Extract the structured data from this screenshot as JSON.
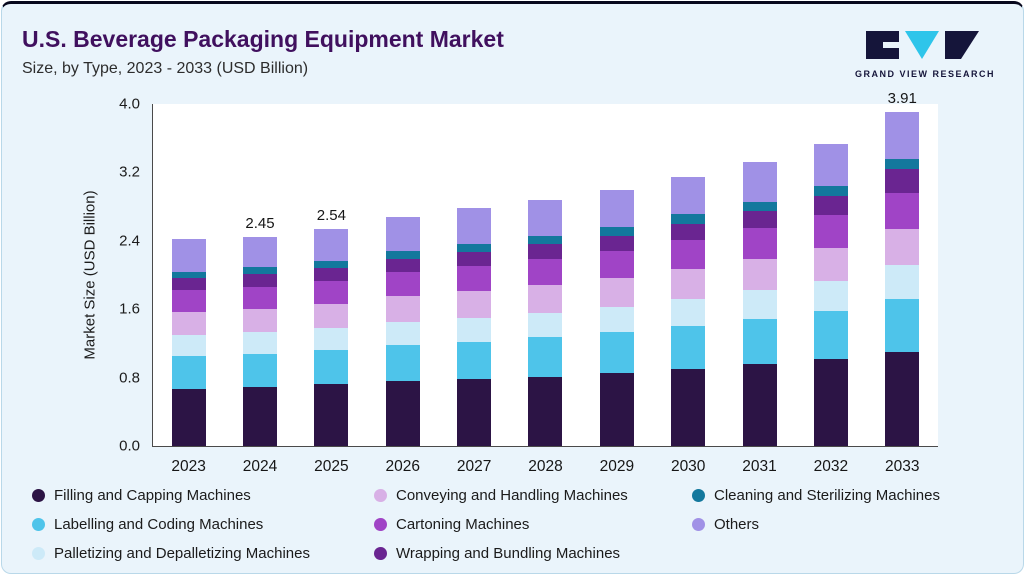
{
  "header": {
    "title": "U.S. Beverage Packaging Equipment Market",
    "subtitle": "Size, by Type, 2023 - 2033 (USD Billion)",
    "logo_text": "GRAND VIEW RESEARCH"
  },
  "colors": {
    "title_text": "#40105e",
    "card_background": "#eaf4fb",
    "logo_navy": "#15153a",
    "logo_cyan": "#2ec5ea"
  },
  "chart_data": {
    "type": "bar",
    "stacked": true,
    "title": "U.S. Beverage Packaging Equipment Market",
    "subtitle": "Size, by Type, 2023 - 2033 (USD Billion)",
    "xlabel": "",
    "ylabel": "Market Size (USD Billion)",
    "ylim": [
      0,
      4.0
    ],
    "yticks": [
      0.0,
      0.8,
      1.6,
      2.4,
      3.2,
      4.0
    ],
    "grid": false,
    "legend_position": "bottom",
    "categories": [
      "2023",
      "2024",
      "2025",
      "2026",
      "2027",
      "2028",
      "2029",
      "2030",
      "2031",
      "2032",
      "2033"
    ],
    "bar_total_labels": [
      "",
      "2.45",
      "2.54",
      "",
      "",
      "",
      "",
      "",
      "",
      "",
      "3.91"
    ],
    "series": [
      {
        "name": "Filling and Capping Machines",
        "color": "#2c1445",
        "values": [
          0.67,
          0.69,
          0.72,
          0.76,
          0.78,
          0.81,
          0.85,
          0.9,
          0.96,
          1.02,
          1.1
        ]
      },
      {
        "name": "Labelling and Coding Machines",
        "color": "#4ec4ea",
        "values": [
          0.38,
          0.39,
          0.4,
          0.42,
          0.44,
          0.46,
          0.48,
          0.5,
          0.53,
          0.56,
          0.62
        ]
      },
      {
        "name": "Palletizing and Depalletizing Machines",
        "color": "#cdeaf8",
        "values": [
          0.25,
          0.25,
          0.26,
          0.27,
          0.28,
          0.29,
          0.3,
          0.32,
          0.33,
          0.35,
          0.4
        ]
      },
      {
        "name": "Conveying and Handling Machines",
        "color": "#d8b0e6",
        "values": [
          0.27,
          0.27,
          0.28,
          0.3,
          0.31,
          0.32,
          0.33,
          0.35,
          0.37,
          0.39,
          0.42
        ]
      },
      {
        "name": "Cartoning Machines",
        "color": "#a044c6",
        "values": [
          0.25,
          0.26,
          0.27,
          0.28,
          0.29,
          0.31,
          0.32,
          0.34,
          0.36,
          0.38,
          0.42
        ]
      },
      {
        "name": "Wrapping and Bundling Machines",
        "color": "#6a2591",
        "values": [
          0.14,
          0.15,
          0.15,
          0.16,
          0.17,
          0.17,
          0.18,
          0.19,
          0.2,
          0.22,
          0.28
        ]
      },
      {
        "name": "Cleaning and Sterilizing Machines",
        "color": "#13789d",
        "values": [
          0.08,
          0.08,
          0.09,
          0.09,
          0.09,
          0.1,
          0.1,
          0.11,
          0.11,
          0.12,
          0.12
        ]
      },
      {
        "name": "Others",
        "color": "#a091e6",
        "values": [
          0.38,
          0.36,
          0.37,
          0.4,
          0.42,
          0.42,
          0.44,
          0.44,
          0.46,
          0.49,
          0.55
        ]
      }
    ],
    "legend_order": [
      0,
      3,
      6,
      1,
      4,
      7,
      2,
      5
    ]
  }
}
